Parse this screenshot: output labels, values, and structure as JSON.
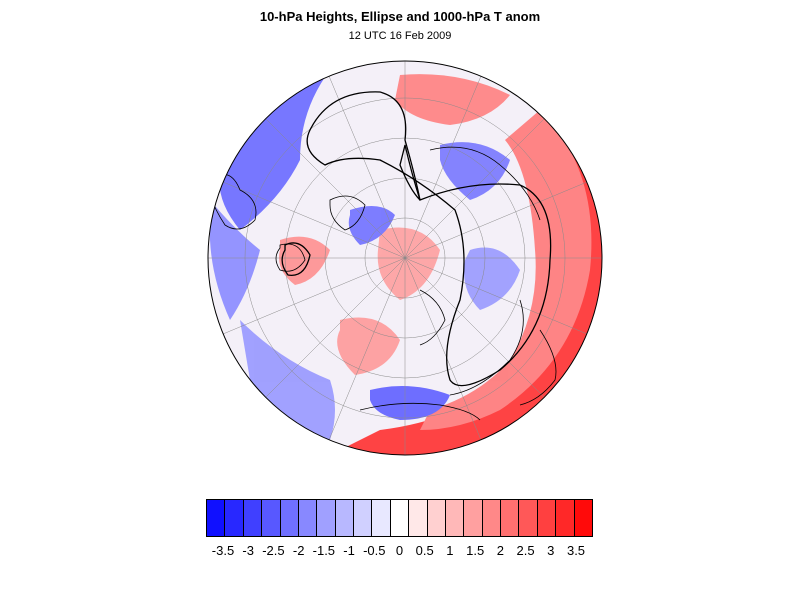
{
  "title": "10-hPa Heights, Ellipse and 1000-hPa T anom",
  "subtitle": "12 UTC 16 Feb 2009",
  "colorbar": {
    "labels": [
      "-3.5",
      "-3",
      "-2.5",
      "-2",
      "-1.5",
      "-1",
      "-0.5",
      "0",
      "0.5",
      "1",
      "1.5",
      "2",
      "2.5",
      "3",
      "3.5"
    ],
    "colors": [
      "#1010ff",
      "#2828ff",
      "#4040ff",
      "#5858ff",
      "#7070ff",
      "#8888ff",
      "#a0a0ff",
      "#b8b8ff",
      "#d0d0ff",
      "#e8e8ff",
      "#ffffff",
      "#ffe8e8",
      "#ffd0d0",
      "#ffb8b8",
      "#ffa0a0",
      "#ff8888",
      "#ff7070",
      "#ff5858",
      "#ff4040",
      "#ff2828",
      "#ff0a0a"
    ]
  },
  "map": {
    "projection": "orthographic-polar",
    "ocean_color": "#ffffff",
    "warm_color": "#ff2a2a",
    "cold_color": "#3a3aff"
  }
}
